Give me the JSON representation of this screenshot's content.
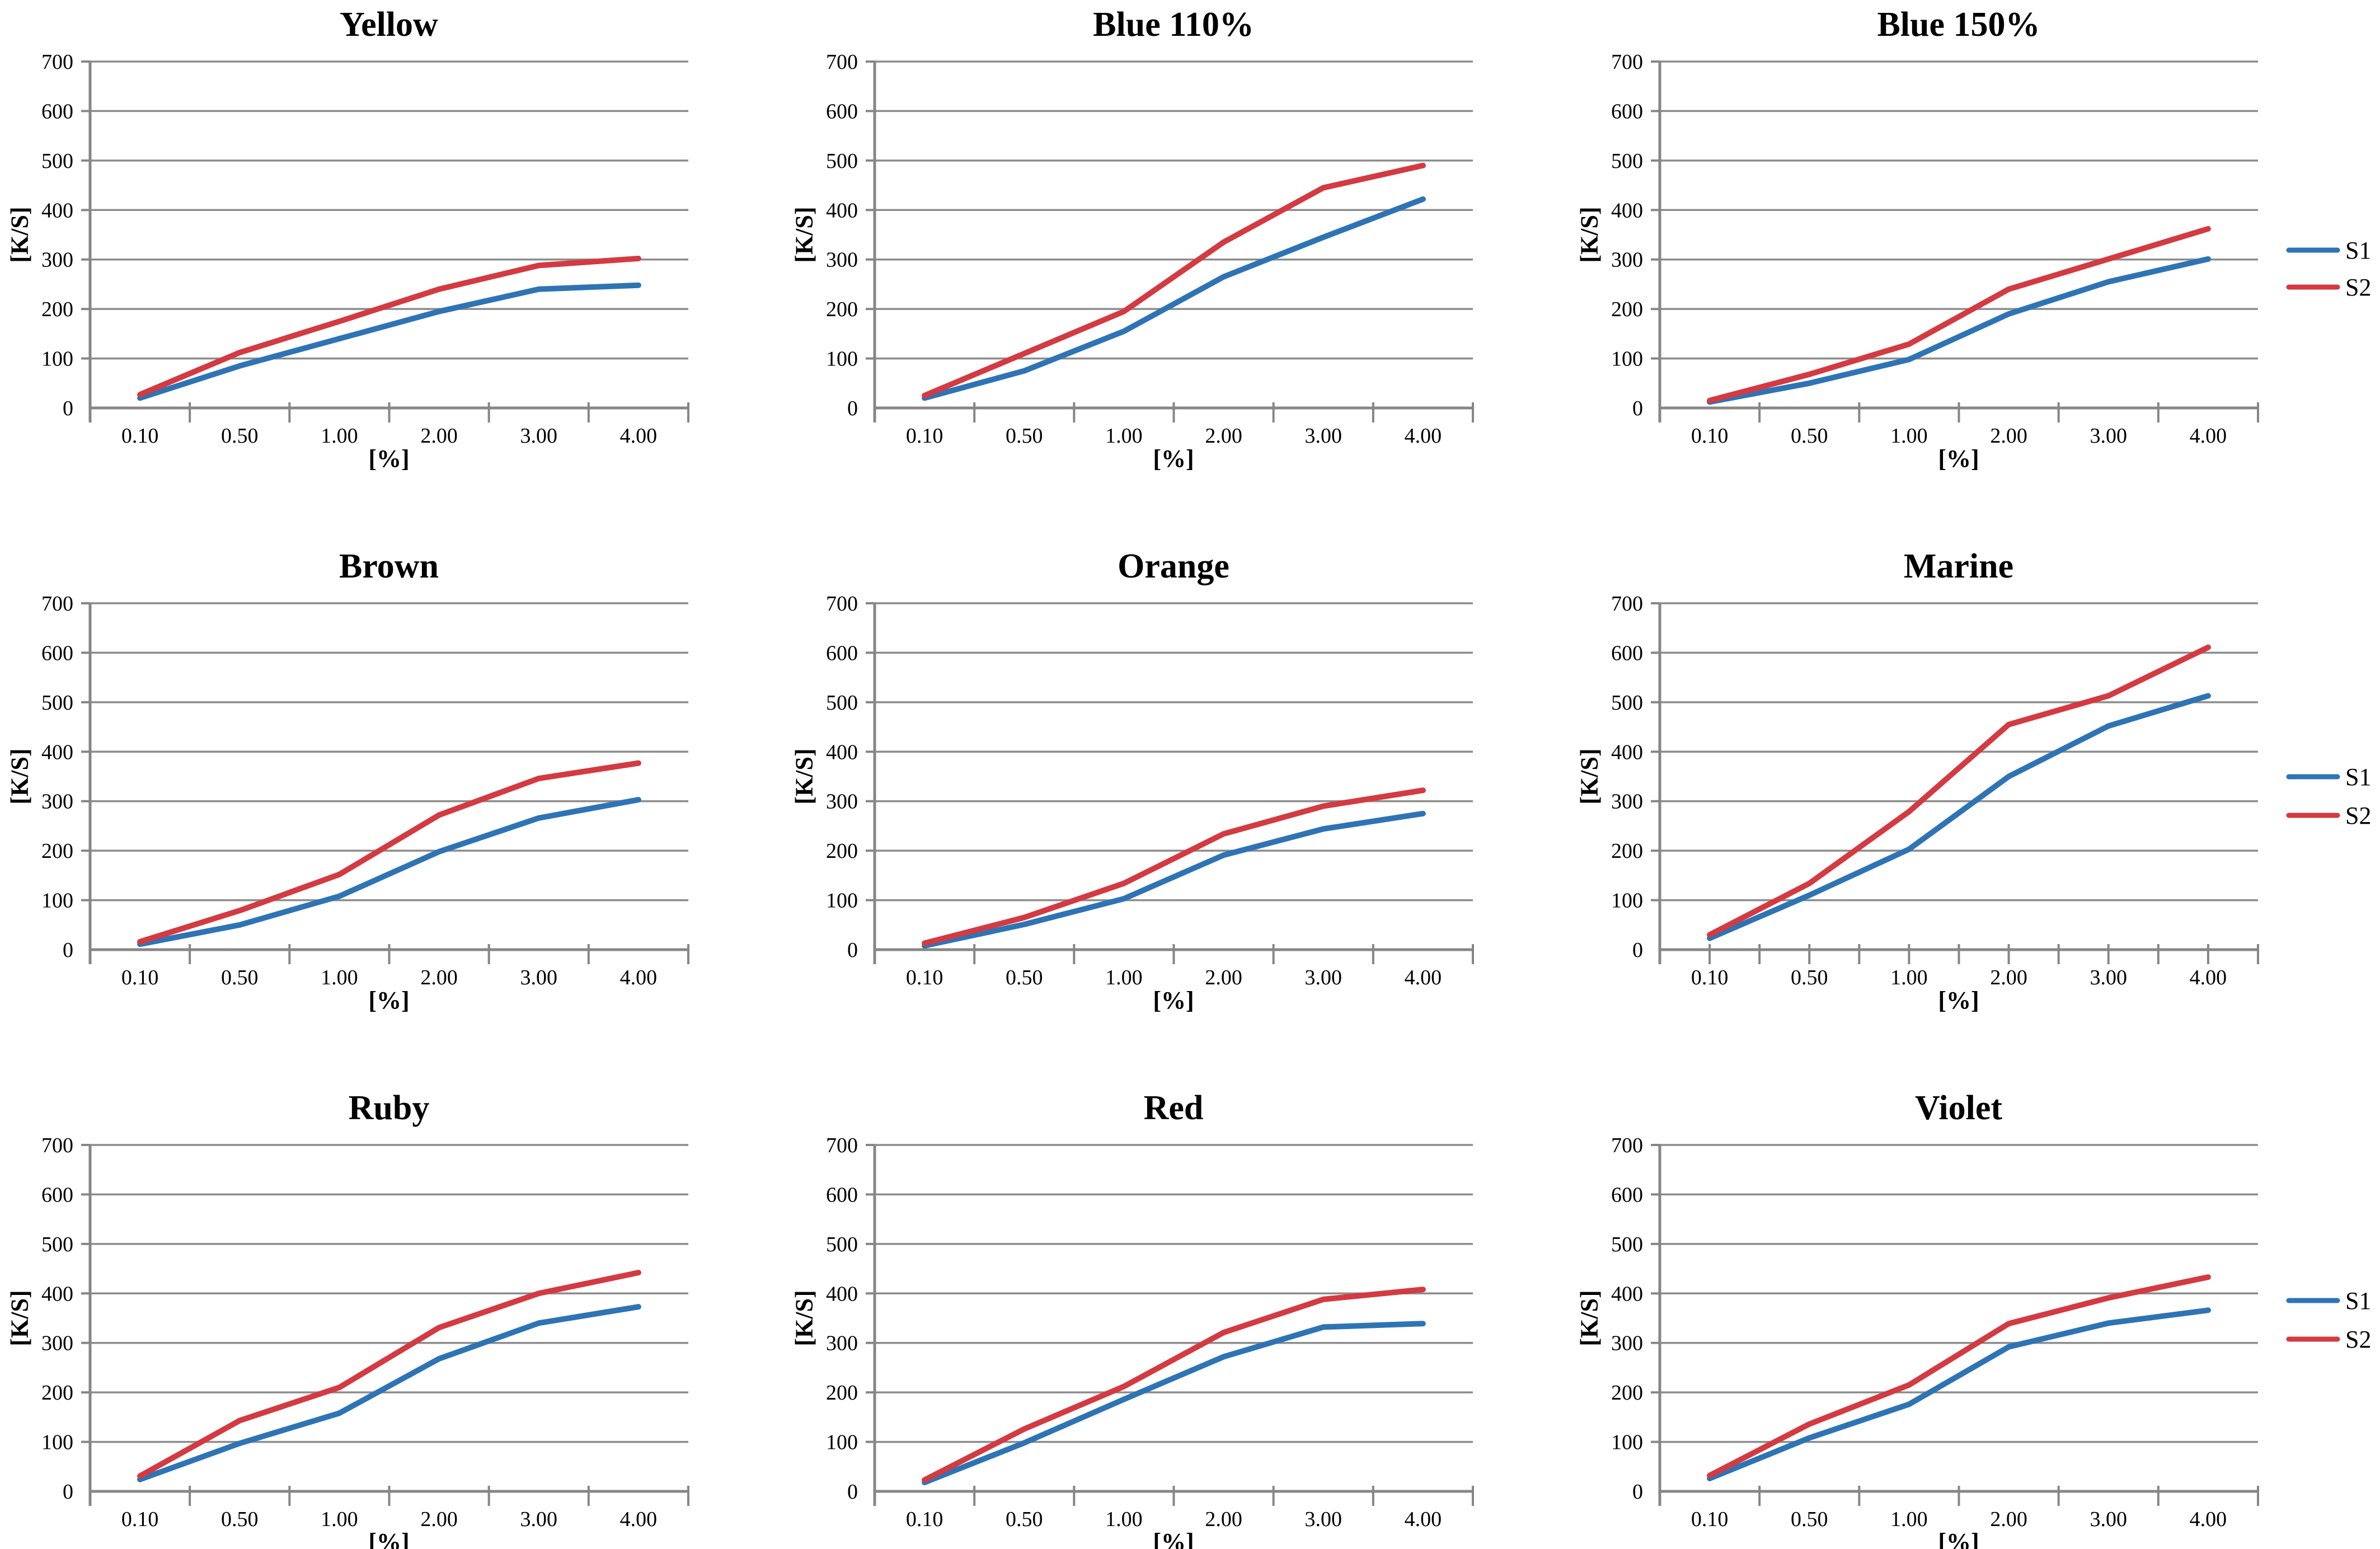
{
  "page": {
    "background": "#FFFFFF",
    "grid_color": "#8C8C8C",
    "axis_color": "#868686",
    "text_color": "#000000"
  },
  "legend": {
    "labels": [
      "S1",
      "S2"
    ]
  },
  "series": [
    {
      "name": "S1",
      "color": "#2E74B5"
    },
    {
      "name": "S2",
      "color": "#D43A41"
    }
  ],
  "axes": {
    "y_label": "[K/S]",
    "x_label": "[%]",
    "y_ticks": [
      "0",
      "100",
      "200",
      "300",
      "400",
      "500",
      "600",
      "700"
    ],
    "x_ticks": [
      "0.10",
      "0.50",
      "1.00",
      "2.00",
      "3.00",
      "4.00"
    ],
    "y_max": 700
  },
  "chart_data": [
    {
      "type": "line",
      "title": "Yellow",
      "x": [
        0.1,
        0.5,
        1.0,
        2.0,
        3.0,
        4.0
      ],
      "ylim": [
        0,
        700
      ],
      "legend": false,
      "series": [
        {
          "name": "S1",
          "values": [
            20,
            85,
            140,
            195,
            240,
            248
          ]
        },
        {
          "name": "S2",
          "values": [
            27,
            112,
            175,
            240,
            288,
            302
          ]
        }
      ]
    },
    {
      "type": "line",
      "title": "Blue 110%",
      "x": [
        0.1,
        0.5,
        1.0,
        2.0,
        3.0,
        4.0
      ],
      "ylim": [
        0,
        700
      ],
      "legend": false,
      "series": [
        {
          "name": "S1",
          "values": [
            20,
            75,
            155,
            265,
            345,
            422
          ]
        },
        {
          "name": "S2",
          "values": [
            25,
            110,
            195,
            335,
            445,
            490
          ]
        }
      ]
    },
    {
      "type": "line",
      "title": "Blue 150%",
      "x": [
        0.1,
        0.5,
        1.0,
        2.0,
        3.0,
        4.0
      ],
      "ylim": [
        0,
        700
      ],
      "legend": true,
      "series": [
        {
          "name": "S1",
          "values": [
            12,
            50,
            98,
            190,
            255,
            301
          ]
        },
        {
          "name": "S2",
          "values": [
            15,
            68,
            129,
            240,
            301,
            362
          ]
        }
      ]
    },
    {
      "type": "line",
      "title": "Brown",
      "x": [
        0.1,
        0.5,
        1.0,
        2.0,
        3.0,
        4.0
      ],
      "ylim": [
        0,
        700
      ],
      "legend": false,
      "series": [
        {
          "name": "S1",
          "values": [
            11,
            50,
            108,
            198,
            266,
            303
          ]
        },
        {
          "name": "S2",
          "values": [
            16,
            79,
            152,
            272,
            346,
            377
          ]
        }
      ]
    },
    {
      "type": "line",
      "title": "Orange",
      "x": [
        0.1,
        0.5,
        1.0,
        2.0,
        3.0,
        4.0
      ],
      "ylim": [
        0,
        700
      ],
      "legend": false,
      "series": [
        {
          "name": "S1",
          "values": [
            8,
            51,
            103,
            191,
            244,
            275
          ]
        },
        {
          "name": "S2",
          "values": [
            13,
            65,
            134,
            234,
            290,
            322
          ]
        }
      ]
    },
    {
      "type": "line",
      "title": "Marine",
      "x": [
        0.1,
        0.5,
        1.0,
        2.0,
        3.0,
        4.0
      ],
      "ylim": [
        0,
        700
      ],
      "legend": true,
      "minor_x_ticks": true,
      "series": [
        {
          "name": "S1",
          "values": [
            23,
            110,
            203,
            350,
            452,
            513
          ]
        },
        {
          "name": "S2",
          "values": [
            30,
            134,
            279,
            455,
            513,
            611
          ]
        }
      ]
    },
    {
      "type": "line",
      "title": "Ruby",
      "x": [
        0.1,
        0.5,
        1.0,
        2.0,
        3.0,
        4.0
      ],
      "ylim": [
        0,
        700
      ],
      "legend": false,
      "series": [
        {
          "name": "S1",
          "values": [
            24,
            97,
            158,
            268,
            340,
            373
          ]
        },
        {
          "name": "S2",
          "values": [
            31,
            143,
            210,
            331,
            400,
            442
          ]
        }
      ]
    },
    {
      "type": "line",
      "title": "Red",
      "x": [
        0.1,
        0.5,
        1.0,
        2.0,
        3.0,
        4.0
      ],
      "ylim": [
        0,
        700
      ],
      "legend": false,
      "series": [
        {
          "name": "S1",
          "values": [
            18,
            98,
            186,
            272,
            332,
            339
          ]
        },
        {
          "name": "S2",
          "values": [
            23,
            126,
            212,
            321,
            388,
            408
          ]
        }
      ]
    },
    {
      "type": "line",
      "title": "Violet",
      "x": [
        0.1,
        0.5,
        1.0,
        2.0,
        3.0,
        4.0
      ],
      "ylim": [
        0,
        700
      ],
      "legend": true,
      "series": [
        {
          "name": "S1",
          "values": [
            26,
            108,
            176,
            292,
            340,
            366
          ]
        },
        {
          "name": "S2",
          "values": [
            32,
            136,
            215,
            339,
            391,
            433
          ]
        }
      ]
    }
  ]
}
